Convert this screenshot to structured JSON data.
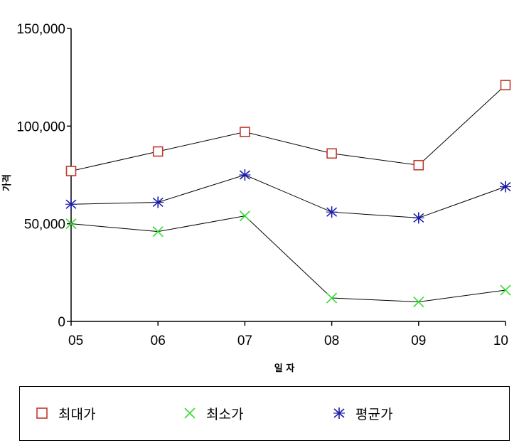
{
  "chart_data": {
    "type": "line",
    "categories": [
      "05",
      "06",
      "07",
      "08",
      "09",
      "10"
    ],
    "xlabel": "일 자",
    "ylabel": "가격",
    "ylim": [
      0,
      150000
    ],
    "yticks": [
      0,
      50000,
      100000,
      150000
    ],
    "ytick_labels": [
      "0",
      "50,000",
      "100,000",
      "150,000"
    ],
    "grid": false,
    "legend_position": "bottom",
    "series": [
      {
        "name": "최대가",
        "marker": "square",
        "color": "#c0392b",
        "values": [
          77000,
          87000,
          97000,
          86000,
          80000,
          121000
        ]
      },
      {
        "name": "최소가",
        "marker": "x",
        "color": "#33dd33",
        "values": [
          50000,
          46000,
          54000,
          12000,
          10000,
          16000
        ]
      },
      {
        "name": "평균가",
        "marker": "asterisk",
        "color": "#1a1aaa",
        "values": [
          60000,
          61000,
          75000,
          56000,
          53000,
          69000
        ]
      }
    ]
  }
}
